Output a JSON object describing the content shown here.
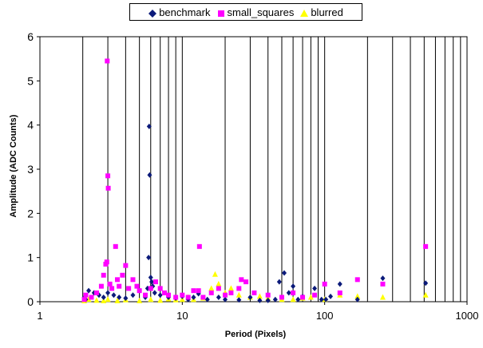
{
  "chart_data": {
    "type": "scatter",
    "xlabel": "Period (Pixels)",
    "ylabel": "Amplitude (ADC Counts)",
    "x_scale": "log",
    "xlim": [
      1,
      1000
    ],
    "ylim": [
      0,
      6
    ],
    "x_tick_labels": [
      "1",
      "10",
      "100",
      "1000"
    ],
    "x_ticks": [
      1,
      10,
      100,
      1000
    ],
    "y_ticks": [
      0,
      1,
      2,
      3,
      4,
      5,
      6
    ],
    "y_tick_labels": [
      "0",
      "1",
      "2",
      "3",
      "4",
      "5",
      "6"
    ],
    "grid": "vertical log-minor gridlines",
    "legend_position": "top",
    "series": [
      {
        "name": "benchmark",
        "marker": "diamond",
        "color": "#0b1a7a",
        "points": [
          [
            2.05,
            0.1
          ],
          [
            2.1,
            0.05
          ],
          [
            2.2,
            0.25
          ],
          [
            2.4,
            0.2
          ],
          [
            2.6,
            0.15
          ],
          [
            2.8,
            0.1
          ],
          [
            3.0,
            0.2
          ],
          [
            3.3,
            0.15
          ],
          [
            3.6,
            0.1
          ],
          [
            4.0,
            0.08
          ],
          [
            4.5,
            0.15
          ],
          [
            5.0,
            0.25
          ],
          [
            5.5,
            0.1
          ],
          [
            5.7,
            0.3
          ],
          [
            5.8,
            1.0
          ],
          [
            5.85,
            3.97
          ],
          [
            5.9,
            2.87
          ],
          [
            6.0,
            0.55
          ],
          [
            6.1,
            0.45
          ],
          [
            6.2,
            0.35
          ],
          [
            6.4,
            0.2
          ],
          [
            7.0,
            0.15
          ],
          [
            8.0,
            0.1
          ],
          [
            9.0,
            0.08
          ],
          [
            10.0,
            0.12
          ],
          [
            11.0,
            0.05
          ],
          [
            12.0,
            0.1
          ],
          [
            13.0,
            0.18
          ],
          [
            15.0,
            0.05
          ],
          [
            18.0,
            0.1
          ],
          [
            20.0,
            0.05
          ],
          [
            25.0,
            0.04
          ],
          [
            30.0,
            0.1
          ],
          [
            35.0,
            0.03
          ],
          [
            40.0,
            0.03
          ],
          [
            45.0,
            0.05
          ],
          [
            48.0,
            0.45
          ],
          [
            52.0,
            0.65
          ],
          [
            56.0,
            0.2
          ],
          [
            60.0,
            0.35
          ],
          [
            65.0,
            0.05
          ],
          [
            70.0,
            0.12
          ],
          [
            85.0,
            0.3
          ],
          [
            95.0,
            0.05
          ],
          [
            102.0,
            0.05
          ],
          [
            110.0,
            0.12
          ],
          [
            128.0,
            0.4
          ],
          [
            170.0,
            0.05
          ],
          [
            256.0,
            0.53
          ],
          [
            512.0,
            0.42
          ]
        ]
      },
      {
        "name": "small_squares",
        "marker": "square",
        "color": "#ff00ff",
        "points": [
          [
            2.05,
            0.05
          ],
          [
            2.1,
            0.15
          ],
          [
            2.3,
            0.1
          ],
          [
            2.5,
            0.2
          ],
          [
            2.7,
            0.35
          ],
          [
            2.8,
            0.6
          ],
          [
            2.9,
            0.85
          ],
          [
            2.95,
            0.9
          ],
          [
            2.97,
            5.45
          ],
          [
            3.0,
            2.85
          ],
          [
            3.02,
            2.57
          ],
          [
            3.1,
            0.4
          ],
          [
            3.2,
            0.3
          ],
          [
            3.4,
            1.25
          ],
          [
            3.5,
            0.5
          ],
          [
            3.6,
            0.35
          ],
          [
            3.8,
            0.6
          ],
          [
            4.0,
            0.82
          ],
          [
            4.2,
            0.3
          ],
          [
            4.5,
            0.5
          ],
          [
            4.8,
            0.35
          ],
          [
            5.0,
            0.25
          ],
          [
            5.5,
            0.15
          ],
          [
            6.0,
            0.3
          ],
          [
            6.5,
            0.45
          ],
          [
            7.0,
            0.3
          ],
          [
            7.5,
            0.2
          ],
          [
            8.0,
            0.15
          ],
          [
            9.0,
            0.1
          ],
          [
            10.0,
            0.15
          ],
          [
            11.0,
            0.1
          ],
          [
            12.0,
            0.25
          ],
          [
            13.0,
            0.25
          ],
          [
            13.2,
            1.25
          ],
          [
            14.0,
            0.1
          ],
          [
            16.0,
            0.2
          ],
          [
            18.0,
            0.3
          ],
          [
            20.0,
            0.15
          ],
          [
            22.0,
            0.2
          ],
          [
            25.0,
            0.3
          ],
          [
            26.0,
            0.5
          ],
          [
            28.0,
            0.45
          ],
          [
            32.0,
            0.2
          ],
          [
            40.0,
            0.15
          ],
          [
            50.0,
            0.1
          ],
          [
            60.0,
            0.2
          ],
          [
            70.0,
            0.1
          ],
          [
            85.0,
            0.15
          ],
          [
            100.0,
            0.4
          ],
          [
            128.0,
            0.2
          ],
          [
            170.0,
            0.5
          ],
          [
            256.0,
            0.4
          ],
          [
            512.0,
            1.25
          ]
        ]
      },
      {
        "name": "blurred",
        "marker": "triangle",
        "color": "#ffff00",
        "points": [
          [
            2.05,
            0.02
          ],
          [
            2.2,
            0.05
          ],
          [
            2.5,
            0.03
          ],
          [
            2.8,
            0.02
          ],
          [
            3.0,
            0.05
          ],
          [
            3.5,
            0.02
          ],
          [
            4.0,
            0.04
          ],
          [
            5.0,
            0.02
          ],
          [
            6.0,
            0.05
          ],
          [
            7.0,
            0.03
          ],
          [
            8.0,
            0.06
          ],
          [
            9.0,
            0.04
          ],
          [
            10.0,
            0.05
          ],
          [
            11.0,
            0.1
          ],
          [
            12.0,
            0.05
          ],
          [
            14.0,
            0.08
          ],
          [
            16.0,
            0.3
          ],
          [
            17.0,
            0.62
          ],
          [
            18.0,
            0.4
          ],
          [
            20.0,
            0.2
          ],
          [
            22.0,
            0.3
          ],
          [
            25.0,
            0.15
          ],
          [
            30.0,
            0.1
          ],
          [
            35.0,
            0.12
          ],
          [
            40.0,
            0.08
          ],
          [
            50.0,
            0.05
          ],
          [
            60.0,
            0.05
          ],
          [
            70.0,
            0.08
          ],
          [
            80.0,
            0.1
          ],
          [
            100.0,
            0.05
          ],
          [
            128.0,
            0.15
          ],
          [
            170.0,
            0.12
          ],
          [
            256.0,
            0.1
          ],
          [
            512.0,
            0.15
          ]
        ]
      }
    ]
  }
}
